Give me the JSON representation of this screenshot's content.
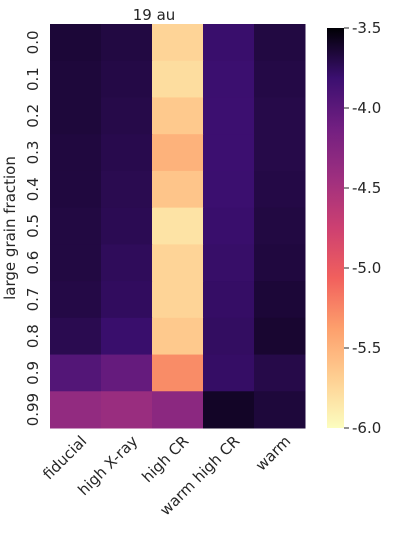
{
  "chart_data": {
    "type": "heatmap",
    "title": "19 au",
    "xlabel": "",
    "ylabel": "large grain fraction",
    "x_categories": [
      "fiducial",
      "high X-ray",
      "high CR",
      "warm high CR",
      "warm"
    ],
    "y_categories": [
      "0.0",
      "0.1",
      "0.2",
      "0.3",
      "0.4",
      "0.5",
      "0.6",
      "0.7",
      "0.8",
      "0.9",
      "0.99"
    ],
    "values": [
      [
        -3.65,
        -3.68,
        -5.72,
        -3.8,
        -3.68
      ],
      [
        -3.66,
        -3.69,
        -5.78,
        -3.81,
        -3.69
      ],
      [
        -3.66,
        -3.7,
        -5.65,
        -3.82,
        -3.7
      ],
      [
        -3.67,
        -3.71,
        -5.5,
        -3.82,
        -3.7
      ],
      [
        -3.67,
        -3.72,
        -5.62,
        -3.81,
        -3.69
      ],
      [
        -3.68,
        -3.73,
        -5.82,
        -3.8,
        -3.68
      ],
      [
        -3.68,
        -3.75,
        -5.72,
        -3.79,
        -3.67
      ],
      [
        -3.69,
        -3.76,
        -5.72,
        -3.78,
        -3.65
      ],
      [
        -3.72,
        -3.8,
        -5.65,
        -3.77,
        -3.63
      ],
      [
        -3.95,
        -4.05,
        -5.28,
        -3.78,
        -3.7
      ],
      [
        -4.35,
        -4.4,
        -4.3,
        -3.6,
        -3.66
      ]
    ],
    "colorbar": {
      "colormap": "magma",
      "vmin": -6.0,
      "vmax": -3.5,
      "tick_labels": [
        "-3.5",
        "-4.0",
        "-4.5",
        "-5.0",
        "-5.5",
        "-6.0"
      ],
      "tick_values": [
        -3.5,
        -4.0,
        -4.5,
        -5.0,
        -5.5,
        -6.0
      ]
    },
    "grid": false
  }
}
